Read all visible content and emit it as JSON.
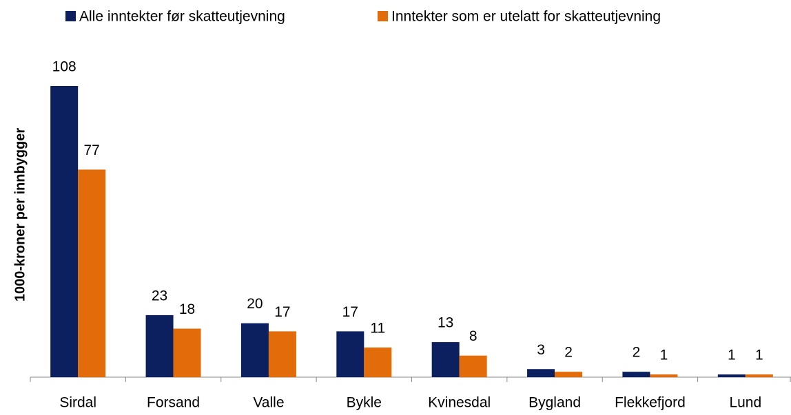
{
  "chart_data": {
    "type": "bar",
    "y_label": "1000-kroner per innbygger",
    "categories": [
      "Sirdal",
      "Forsand",
      "Valle",
      "Bykle",
      "Kvinesdal",
      "Bygland",
      "Flekkefjord",
      "Lund"
    ],
    "series": [
      {
        "name": "Alle inntekter før skatteutjevning",
        "color": "#0c1f5e",
        "values": [
          108,
          23,
          20,
          17,
          13,
          3,
          2,
          1
        ]
      },
      {
        "name": "Inntekter som er utelatt for skatteutjevning",
        "color": "#e36c0a",
        "values": [
          77,
          18,
          17,
          11,
          8,
          2,
          1,
          1
        ]
      }
    ],
    "ylim": [
      0,
      120
    ],
    "legend": "top"
  }
}
